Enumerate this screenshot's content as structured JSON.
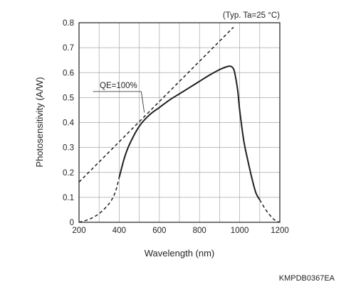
{
  "chart_data": {
    "type": "line",
    "title": "",
    "condition_note": "(Typ. Ta=25 °C)",
    "xlabel": "Wavelength (nm)",
    "ylabel": "Photosensitivity (A/W)",
    "xlim": [
      200,
      1200
    ],
    "ylim": [
      0,
      0.8
    ],
    "x_ticks": [
      200,
      400,
      600,
      800,
      1000,
      1200
    ],
    "y_ticks": [
      0,
      0.1,
      0.2,
      0.3,
      0.4,
      0.5,
      0.6,
      0.7,
      0.8
    ],
    "y_tick_labels": [
      "0",
      "0.1",
      "0.2",
      "0.3",
      "0.4",
      "0.5",
      "0.6",
      "0.7",
      "0.8"
    ],
    "grid": true,
    "annotation": "QE=100%",
    "series": [
      {
        "name": "",
        "style": "solid",
        "x": [
          400,
          425,
          450,
          500,
          550,
          600,
          650,
          700,
          750,
          800,
          850,
          900,
          930,
          950,
          965,
          975,
          990,
          1000,
          1020,
          1040,
          1060,
          1080,
          1100
        ],
        "y": [
          0.18,
          0.255,
          0.31,
          0.385,
          0.43,
          0.46,
          0.49,
          0.515,
          0.54,
          0.565,
          0.59,
          0.612,
          0.622,
          0.626,
          0.62,
          0.6,
          0.53,
          0.45,
          0.33,
          0.25,
          0.18,
          0.12,
          0.09
        ]
      },
      {
        "name": "",
        "style": "dashed",
        "x": [
          200,
          250,
          300,
          350,
          380,
          400
        ],
        "y": [
          0.0,
          0.012,
          0.035,
          0.075,
          0.12,
          0.18
        ]
      },
      {
        "name": "",
        "style": "dashed",
        "x": [
          1100,
          1130,
          1160,
          1180,
          1200
        ],
        "y": [
          0.09,
          0.05,
          0.02,
          0.006,
          0.0
        ]
      },
      {
        "name": "QE=100%",
        "style": "dashed",
        "x": [
          200,
          969
        ],
        "y": [
          0.161,
          0.782
        ]
      }
    ],
    "annotation_leader": {
      "x1": 525,
      "y1": 0.44,
      "x2": 510,
      "y2": 0.53
    },
    "figure_code": "KMPDB0367EA"
  }
}
